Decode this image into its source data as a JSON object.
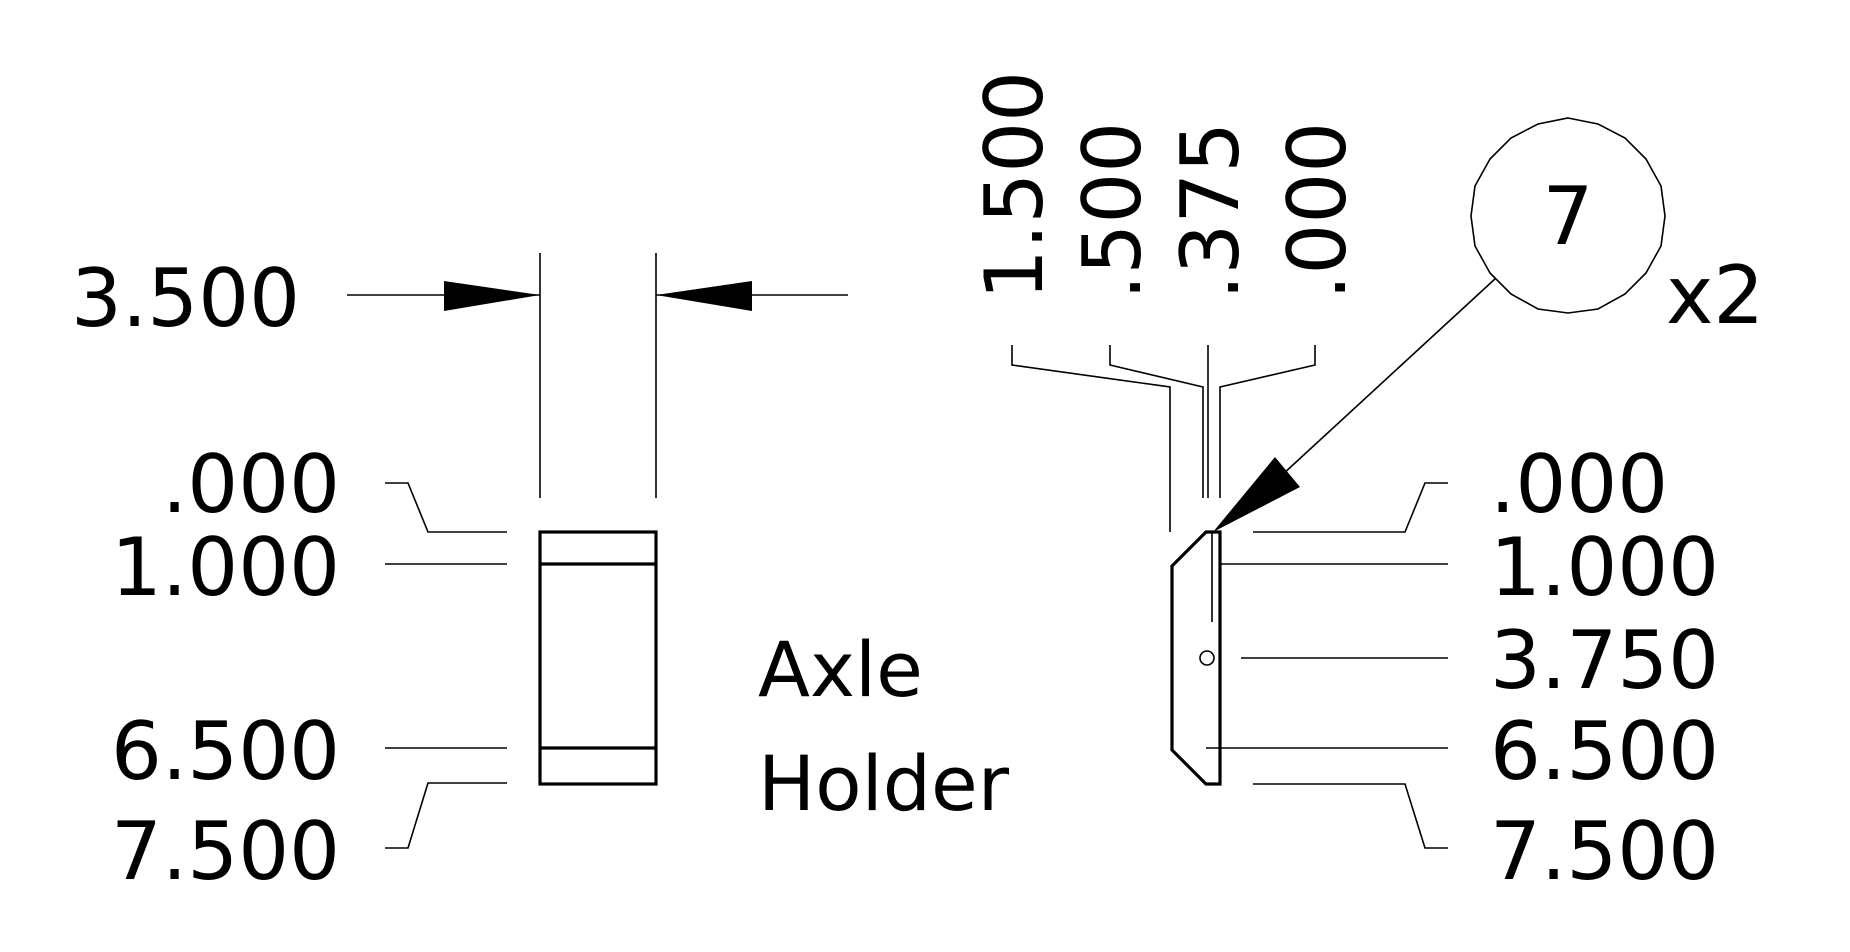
{
  "part": {
    "title_line1": "Axle",
    "title_line2": "Holder",
    "balloon_number": "7",
    "quantity": "x2"
  },
  "front_view": {
    "width_dimension": "3.500",
    "ordinates": [
      ".000",
      "1.000",
      "6.500",
      "7.500"
    ]
  },
  "side_view": {
    "top_ordinates": [
      "1.500",
      ".500",
      ".375",
      ".000"
    ],
    "ordinates": [
      ".000",
      "1.000",
      "3.750",
      "6.500",
      "7.500"
    ]
  }
}
